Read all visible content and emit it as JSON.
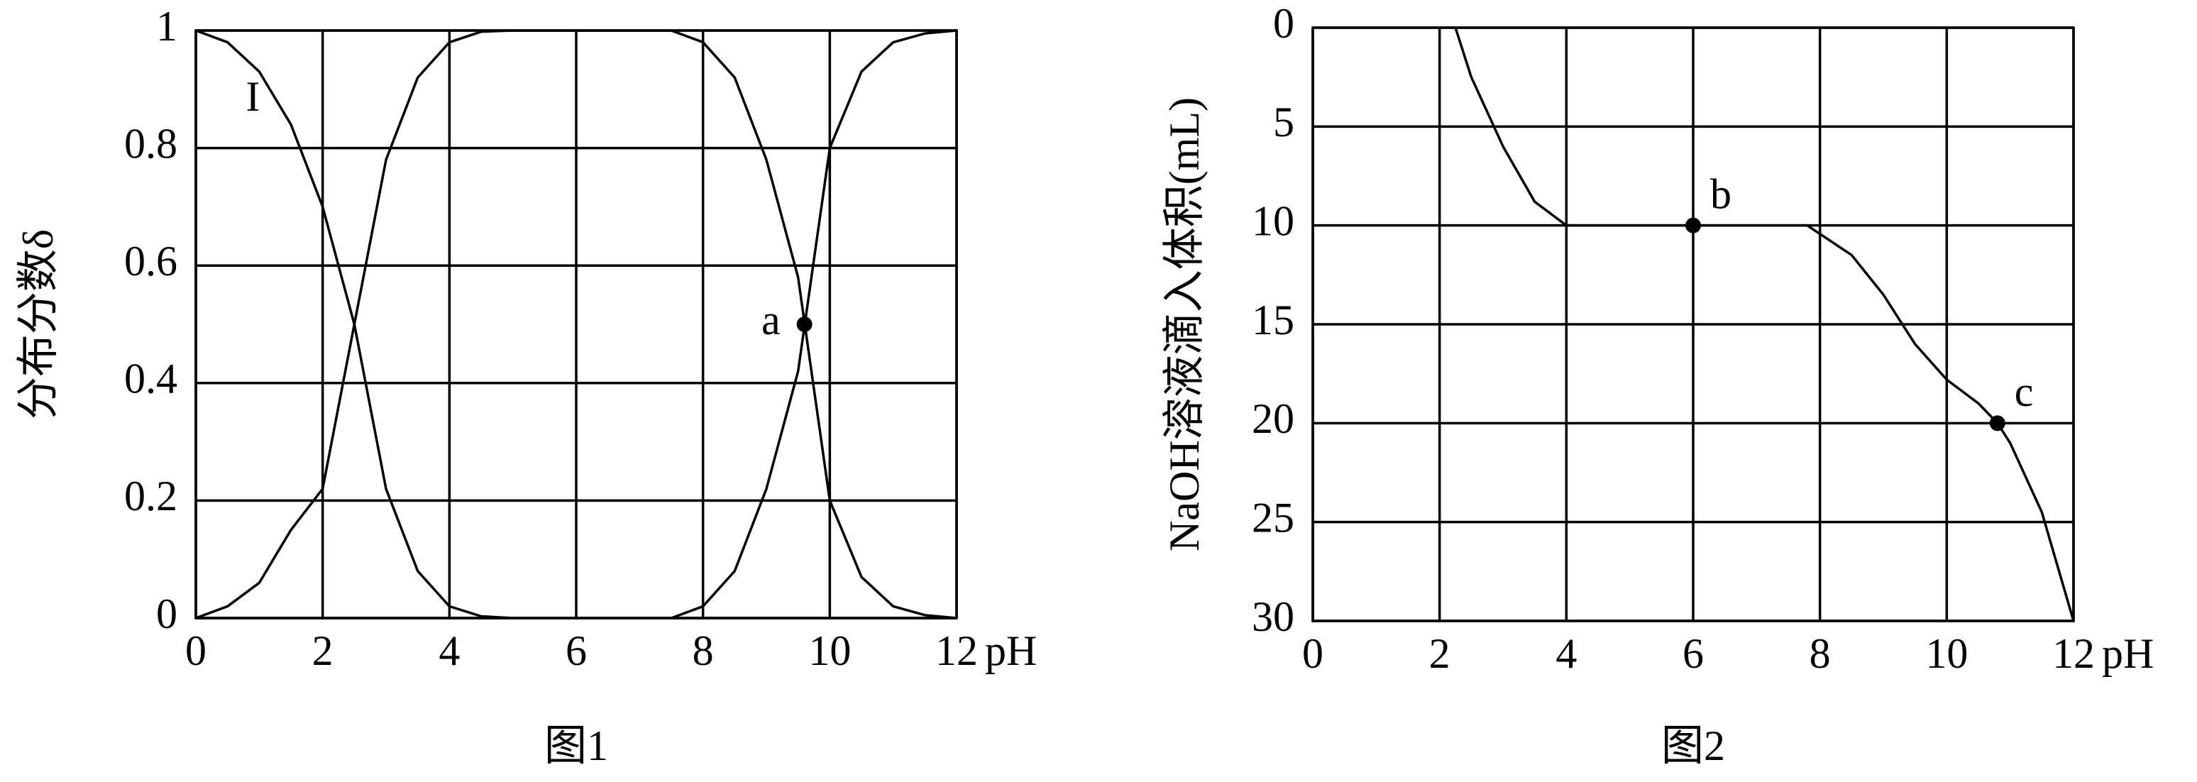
{
  "chart_data": [
    {
      "type": "line",
      "caption": "图1",
      "x_label": "pH",
      "y_label": "分布分数δ",
      "x": [
        0,
        0.5,
        1,
        1.5,
        2,
        2.5,
        3,
        3.5,
        4,
        4.5,
        5,
        5.5,
        6,
        6.5,
        7,
        7.5,
        8,
        8.5,
        9,
        9.5,
        10,
        10.5,
        11,
        11.5,
        12
      ],
      "xlim": [
        0,
        12
      ],
      "xticks": [
        0,
        2,
        4,
        6,
        8,
        10,
        12
      ],
      "ylim": [
        0,
        1
      ],
      "yticks": [
        0,
        0.2,
        0.4,
        0.6,
        0.8,
        1
      ],
      "grid": true,
      "series": [
        {
          "name": "I",
          "color": "#000000",
          "values": [
            1,
            0.98,
            0.93,
            0.84,
            0.7,
            0.5,
            0.22,
            0.08,
            0.02,
            0.003,
            0,
            0,
            0,
            0,
            0,
            0,
            0,
            0,
            0,
            0,
            0,
            0,
            0,
            0,
            0
          ]
        },
        {
          "color": "#000000",
          "values": [
            0,
            0.02,
            0.06,
            0.15,
            0.22,
            0.5,
            0.78,
            0.92,
            0.98,
            0.998,
            1,
            1,
            1,
            1,
            1,
            1,
            0.98,
            0.92,
            0.78,
            0.58,
            0.2,
            0.07,
            0.02,
            0.005,
            0
          ]
        },
        {
          "color": "#000000",
          "values": [
            0,
            0,
            0,
            0,
            0,
            0,
            0,
            0,
            0,
            0,
            0,
            0,
            0,
            0,
            0,
            0,
            0.02,
            0.08,
            0.22,
            0.42,
            0.8,
            0.93,
            0.98,
            0.995,
            1
          ]
        }
      ],
      "annotations": [
        {
          "label": "a",
          "x": 9.6,
          "y": 0.5
        }
      ]
    },
    {
      "type": "line",
      "caption": "图2",
      "x_label": "pH",
      "y_label": "NaOH溶液滴入体积(mL)",
      "x": [
        2.25,
        2.5,
        3,
        3.5,
        4,
        5,
        6,
        7,
        7.8,
        8.5,
        9,
        9.5,
        10,
        10.5,
        10.8,
        11,
        11.5,
        12
      ],
      "xlim": [
        0,
        12
      ],
      "xticks": [
        0,
        2,
        4,
        6,
        8,
        10,
        12
      ],
      "ylim": [
        30,
        0
      ],
      "yticks": [
        0,
        5,
        10,
        15,
        20,
        25,
        30
      ],
      "grid": true,
      "series": [
        {
          "color": "#000000",
          "values": [
            0,
            2.5,
            6,
            8.8,
            10,
            10,
            10,
            10,
            10,
            11.5,
            13.5,
            16,
            17.8,
            19,
            20,
            21,
            24.5,
            30
          ]
        }
      ],
      "annotations": [
        {
          "label": "b",
          "x": 6,
          "y": 10
        },
        {
          "label": "c",
          "x": 10.8,
          "y": 20
        }
      ]
    }
  ]
}
